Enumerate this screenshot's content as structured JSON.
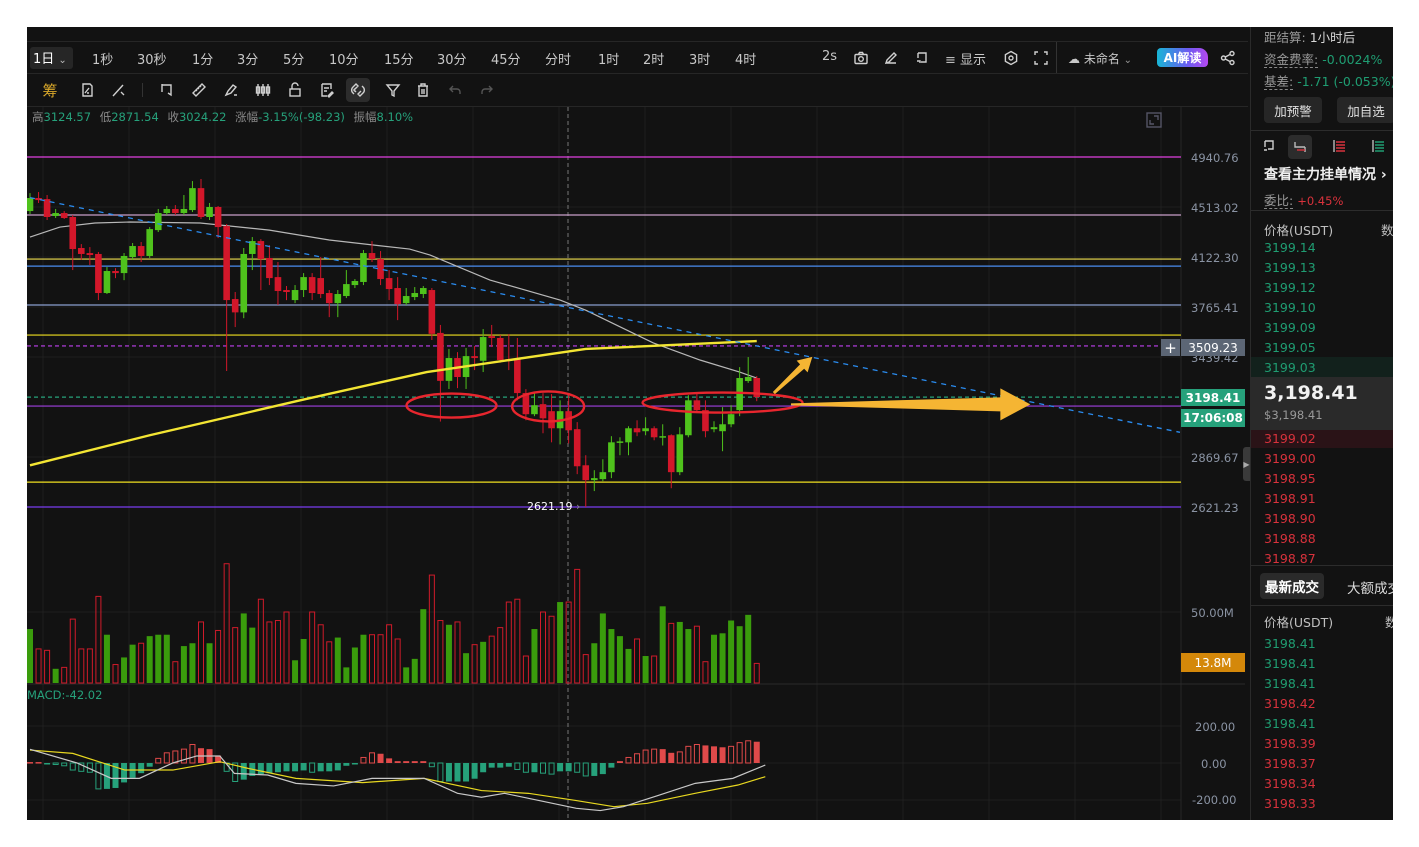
{
  "timeframes": {
    "selected": "1日",
    "items": [
      "1秒",
      "30秒",
      "1分",
      "3分",
      "5分",
      "10分",
      "15分",
      "30分",
      "45分",
      "分时",
      "1时",
      "2时",
      "3时",
      "4时"
    ]
  },
  "top_right": {
    "refresh": "2s",
    "display_label": "显示",
    "layout_name": "未命名",
    "ai_button": "AI解读"
  },
  "toolbar": {
    "chip_label": "筹",
    "icons": [
      "chip-distribution-icon",
      "replay-icon",
      "line-tool-icon",
      "bookmark-icon",
      "ruler-icon",
      "brush-icon",
      "candle-icon",
      "lock-icon",
      "notes-icon",
      "magnet-icon",
      "filter-icon",
      "trash-icon",
      "undo-icon",
      "redo-icon"
    ]
  },
  "ohlc_info": {
    "high_label": "高",
    "high": "3124.57",
    "low_label": "低",
    "low": "2871.54",
    "close_label": "收",
    "close": "3024.22",
    "change_label": "涨幅",
    "change": "-3.15%(-98.23)",
    "amplitude_label": "振幅",
    "amplitude": "8.10%"
  },
  "price_axis": {
    "labels": [
      "4940.76",
      "4513.02",
      "4122.30",
      "3765.41",
      "3439.42",
      "2869.67",
      "2621.23"
    ],
    "crosshair_price": "3509.23",
    "current_price": "3198.41",
    "countdown": "17:06:08",
    "low_marker": "2621.19"
  },
  "volume_axis": {
    "label": "50.00M",
    "current": "13.8M"
  },
  "macd": {
    "label": "MACD:-42.02",
    "axis": [
      "200.00",
      "0.00",
      "-200.00"
    ]
  },
  "colors": {
    "up": "#4fc21c",
    "down": "#d3172a",
    "vol_up": "#3a9c0c",
    "vol_down": "#d01b2a",
    "hist_up": "#e04a4a",
    "hist_down": "#26a17b",
    "accent_green": "#26a17b",
    "annotation_red": "#e8262e",
    "annotation_arrow": "#f5b533"
  },
  "chart_data": {
    "type": "candlestick",
    "price_scale": "log",
    "ylim": [
      2621.23,
      4940.76
    ],
    "candles": [
      [
        4480,
        4587,
        4628,
        4456
      ],
      [
        4587,
        4570,
        4637,
        4546
      ],
      [
        4578,
        4432,
        4612,
        4408
      ],
      [
        4440,
        4464,
        4497,
        4424
      ],
      [
        4464,
        4424,
        4480,
        4416
      ],
      [
        4432,
        4182,
        4448,
        4026
      ],
      [
        4190,
        4145,
        4220,
        4100
      ],
      [
        4152,
        4137,
        4197,
        4063
      ],
      [
        4145,
        3862,
        4160,
        3813
      ],
      [
        3862,
        4019,
        4048,
        3855
      ],
      [
        4019,
        4004,
        4040,
        3968
      ],
      [
        4004,
        4130,
        4152,
        3953
      ],
      [
        4122,
        4205,
        4228,
        4100
      ],
      [
        4205,
        4130,
        4236,
        4085
      ],
      [
        4130,
        4336,
        4352,
        4115
      ],
      [
        4328,
        4464,
        4497,
        4313
      ],
      [
        4464,
        4497,
        4521,
        4448
      ],
      [
        4497,
        4464,
        4529,
        4448
      ],
      [
        4464,
        4497,
        4612,
        4448
      ],
      [
        4488,
        4670,
        4730,
        4472
      ],
      [
        4670,
        4432,
        4748,
        4416
      ],
      [
        4432,
        4513,
        4546,
        4408
      ],
      [
        4513,
        4352,
        4521,
        4266
      ],
      [
        4360,
        3813,
        4376,
        3353
      ],
      [
        3820,
        3729,
        3869,
        3631
      ],
      [
        3729,
        4145,
        4190,
        3690
      ],
      [
        4145,
        4243,
        4274,
        4026
      ],
      [
        4243,
        4107,
        4258,
        3883
      ],
      [
        4115,
        3968,
        4212,
        3918
      ],
      [
        3975,
        3876,
        4085,
        3779
      ],
      [
        3883,
        3869,
        3911,
        3813
      ],
      [
        3813,
        3883,
        3918,
        3792
      ],
      [
        3883,
        3975,
        4004,
        3834
      ],
      [
        3975,
        3862,
        4004,
        3813
      ],
      [
        3968,
        3855,
        4122,
        3827
      ],
      [
        3862,
        3792,
        3883,
        3697
      ],
      [
        3792,
        3855,
        3883,
        3697
      ],
      [
        3841,
        3925,
        4026,
        3827
      ],
      [
        3918,
        3947,
        3961,
        3897
      ],
      [
        3940,
        4152,
        4175,
        3918
      ],
      [
        4152,
        4107,
        4243,
        4085
      ],
      [
        4107,
        3961,
        4167,
        3918
      ],
      [
        3968,
        3890,
        4026,
        3813
      ],
      [
        3897,
        3785,
        3975,
        3677
      ],
      [
        3792,
        3841,
        3897,
        3779
      ],
      [
        3834,
        3862,
        3904,
        3813
      ],
      [
        3855,
        3897,
        3911,
        3827
      ],
      [
        3883,
        3587,
        3897,
        3547
      ],
      [
        3593,
        3294,
        3645,
        3060
      ],
      [
        3294,
        3433,
        3490,
        3246
      ],
      [
        3433,
        3317,
        3470,
        3251
      ],
      [
        3317,
        3445,
        3496,
        3246
      ],
      [
        3445,
        3433,
        3509,
        3359
      ],
      [
        3416,
        3566,
        3618,
        3347
      ],
      [
        3572,
        3560,
        3645,
        3502
      ],
      [
        3560,
        3421,
        3579,
        3404
      ],
      [
        3427,
        3416,
        3585,
        3359
      ],
      [
        3427,
        3222,
        3560,
        3180
      ],
      [
        3222,
        3101,
        3245,
        3067
      ],
      [
        3101,
        3152,
        3222,
        3090
      ],
      [
        3158,
        3078,
        3222,
        2996
      ],
      [
        3118,
        3023,
        3216,
        2947
      ],
      [
        3023,
        3118,
        3180,
        2936
      ],
      [
        3118,
        3012,
        3216,
        2941
      ],
      [
        3018,
        2822,
        3057,
        2782
      ],
      [
        2827,
        2752,
        2879,
        2621.19
      ],
      [
        2752,
        2762,
        2802,
        2698
      ],
      [
        2757,
        2792,
        2858,
        2747
      ],
      [
        2792,
        2947,
        2980,
        2762
      ],
      [
        2947,
        2952,
        2974,
        2879
      ],
      [
        2947,
        3023,
        3034,
        2879
      ],
      [
        3023,
        3001,
        3067,
        2980
      ],
      [
        3007,
        3023,
        3084,
        2985
      ],
      [
        3023,
        2974,
        3034,
        2958
      ],
      [
        2974,
        2980,
        3045,
        2930
      ],
      [
        2985,
        2792,
        2990,
        2712
      ],
      [
        2792,
        2990,
        3029,
        2777
      ],
      [
        2985,
        3180,
        3210,
        2974
      ],
      [
        3180,
        3124,
        3222,
        3107
      ],
      [
        3124,
        3007,
        3180,
        2974
      ],
      [
        3018,
        3029,
        3062,
        3001
      ],
      [
        3007,
        3045,
        3141,
        2900
      ],
      [
        3045,
        3101,
        3152,
        3029
      ],
      [
        3124,
        3311,
        3377,
        3090
      ],
      [
        3293,
        3317,
        3439,
        3282
      ],
      [
        3311,
        3198.41,
        3323,
        3175
      ]
    ],
    "volume_millions": [
      38,
      24,
      23,
      10,
      11,
      45,
      24,
      24,
      61,
      34,
      13,
      18,
      27,
      28,
      33,
      34,
      34,
      15,
      26,
      28,
      43,
      28,
      37,
      84,
      39,
      49,
      39,
      59,
      43,
      44,
      50,
      16,
      31,
      50,
      41,
      29,
      32,
      11,
      25,
      34,
      34,
      34,
      41,
      31,
      11,
      17,
      52,
      76,
      44,
      41,
      43,
      21,
      27,
      29,
      33,
      39,
      57,
      59,
      19,
      38,
      50,
      47,
      57,
      57,
      80,
      20,
      28,
      49,
      38,
      33,
      24,
      31,
      19,
      19,
      54,
      42,
      43,
      38,
      40,
      15,
      34,
      35,
      44,
      40,
      48,
      13.8
    ],
    "macd_hist": [
      5,
      5,
      -2,
      -5,
      -15,
      -38,
      -45,
      -50,
      -140,
      -140,
      -135,
      -105,
      -80,
      -55,
      -20,
      25,
      55,
      65,
      75,
      100,
      80,
      75,
      40,
      -45,
      -100,
      -90,
      -70,
      -60,
      -55,
      -50,
      -45,
      -45,
      -40,
      -50,
      -45,
      -45,
      -40,
      -15,
      -5,
      30,
      55,
      50,
      25,
      10,
      10,
      10,
      10,
      -20,
      -100,
      -100,
      -100,
      -100,
      -85,
      -50,
      -25,
      -25,
      -20,
      -35,
      -50,
      -50,
      -55,
      -60,
      -45,
      -45,
      -50,
      -70,
      -70,
      -60,
      -25,
      10,
      30,
      50,
      70,
      75,
      75,
      55,
      60,
      90,
      100,
      95,
      90,
      85,
      90,
      110,
      120,
      115
    ],
    "macd_dif": [
      [
        0,
        74
      ],
      [
        5.5,
        0
      ],
      [
        9.5,
        -83
      ],
      [
        12.8,
        -83
      ],
      [
        16.7,
        0
      ],
      [
        19.5,
        38
      ],
      [
        22.2,
        38
      ],
      [
        23.9,
        -56
      ],
      [
        27.8,
        -65
      ],
      [
        31.1,
        -110
      ],
      [
        35.5,
        -124
      ],
      [
        40,
        -83
      ],
      [
        46.1,
        -83
      ],
      [
        50,
        -164
      ],
      [
        52.8,
        -185
      ],
      [
        55.5,
        -164
      ],
      [
        58.3,
        -191
      ],
      [
        63.9,
        -245
      ],
      [
        66.7,
        -257
      ],
      [
        69.4,
        -236
      ],
      [
        73.3,
        -178
      ],
      [
        77.8,
        -110
      ],
      [
        82.2,
        -83
      ],
      [
        86,
        -11
      ]
    ],
    "macd_dea": [
      [
        0,
        70
      ],
      [
        5,
        52
      ],
      [
        11.1,
        -38
      ],
      [
        16.7,
        -38
      ],
      [
        22.2,
        7
      ],
      [
        25.5,
        -29
      ],
      [
        31.1,
        -83
      ],
      [
        38.9,
        -106
      ],
      [
        46.1,
        -83
      ],
      [
        52.8,
        -149
      ],
      [
        58.3,
        -164
      ],
      [
        63.9,
        -203
      ],
      [
        68.3,
        -236
      ],
      [
        72.2,
        -218
      ],
      [
        77.8,
        -164
      ],
      [
        82.8,
        -119
      ],
      [
        86,
        -74
      ]
    ],
    "ma_white": [
      [
        0,
        4274
      ],
      [
        3.5,
        4352
      ],
      [
        7.6,
        4384
      ],
      [
        11.7,
        4392
      ],
      [
        19.9,
        4384
      ],
      [
        28,
        4328
      ],
      [
        35,
        4251
      ],
      [
        44.4,
        4182
      ],
      [
        46.8,
        4137
      ],
      [
        53.8,
        3954
      ],
      [
        62,
        3813
      ],
      [
        65,
        3744
      ],
      [
        72.9,
        3528
      ],
      [
        78.4,
        3420
      ],
      [
        83,
        3347
      ],
      [
        85,
        3311
      ]
    ],
    "ma_yellow": [
      [
        0,
        2827
      ],
      [
        14,
        2985
      ],
      [
        31.6,
        3180
      ],
      [
        46.4,
        3347
      ],
      [
        65,
        3490
      ],
      [
        85,
        3540
      ]
    ],
    "trend_line": [
      [
        0,
        4590
      ],
      [
        134.5,
        3001
      ]
    ],
    "horizontal_lines": [
      {
        "price": 4940.76,
        "color": "#e040e0"
      },
      {
        "price": 4448,
        "color": "#c9a0c9"
      },
      {
        "price": 4107,
        "color": "#f0e050"
      },
      {
        "price": 4055,
        "color": "#4a8df0"
      },
      {
        "price": 3779,
        "color": "#8a9fd0"
      },
      {
        "price": 3579,
        "color": "#f0e020"
      },
      {
        "price": 3509.23,
        "color": "#c040f0",
        "dashed": true
      },
      {
        "price": 3198.41,
        "color": "#26a17b",
        "dashed": true
      },
      {
        "price": 3147,
        "color": "#a040e0"
      },
      {
        "price": 2742,
        "color": "#f0e020"
      },
      {
        "price": 2621.23,
        "color": "#7a3cf0"
      }
    ],
    "annotations": [
      {
        "type": "ellipse",
        "candle": 49.3,
        "price": 3150
      },
      {
        "type": "ellipse",
        "candle": 60.6,
        "price": 3145
      },
      {
        "type": "ellipse",
        "candle": 81,
        "price": 3167
      },
      {
        "type": "arrow",
        "from": [
          89,
          3157
        ],
        "to": [
          117,
          3157
        ]
      },
      {
        "type": "arrow",
        "from": [
          87,
          3222
        ],
        "to": [
          91.5,
          3440
        ]
      }
    ]
  },
  "sidebar": {
    "settlement_label": "距结算:",
    "settlement_value": "1小时后",
    "funding_label": "资金费率:",
    "funding_value": "-0.0024%",
    "basis_label": "基差:",
    "basis_value": "-1.71 (-0.053%)",
    "alert_button": "加预警",
    "watchlist_button": "加自选",
    "main_orders_link": "查看主力挂单情况",
    "ratio_label": "委比:",
    "ratio_value": "+0.45%",
    "price_header": "价格(USDT)",
    "qty_header": "数",
    "asks": [
      "3199.14",
      "3199.13",
      "3199.12",
      "3199.10",
      "3199.09",
      "3199.05",
      "3199.03"
    ],
    "last_price": "3,198.41",
    "last_price_usd": "$3,198.41",
    "bids": [
      "3199.02",
      "3199.00",
      "3198.95",
      "3198.91",
      "3198.90",
      "3198.88",
      "3198.87"
    ],
    "trade_tabs": [
      "最新成交",
      "大额成交"
    ],
    "trades_header": "价格(USDT)",
    "trades_qty_header": "数",
    "trades": [
      {
        "price": "3198.41",
        "side": "buy"
      },
      {
        "price": "3198.41",
        "side": "buy"
      },
      {
        "price": "3198.41",
        "side": "buy"
      },
      {
        "price": "3198.42",
        "side": "sell"
      },
      {
        "price": "3198.41",
        "side": "buy"
      },
      {
        "price": "3198.39",
        "side": "sell"
      },
      {
        "price": "3198.37",
        "side": "sell"
      },
      {
        "price": "3198.34",
        "side": "sell"
      },
      {
        "price": "3198.33",
        "side": "sell"
      }
    ]
  }
}
